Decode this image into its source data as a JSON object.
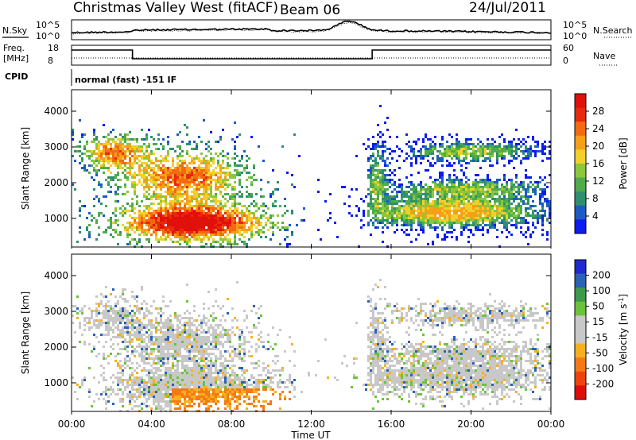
{
  "header": {
    "station": "Christmas Valley West (fitACF)",
    "beam": "Beam 06",
    "date": "24/Jul/2011"
  },
  "panels": {
    "noise": {
      "left_label": "N.Sky",
      "right_label": "N.Search",
      "left_ticks": [
        "10^5",
        "10^0"
      ],
      "right_ticks": [
        "10^5",
        "10^0"
      ]
    },
    "freq": {
      "left_label_1": "Freq.",
      "left_label_2": "[MHz]",
      "right_label": "Nave",
      "left_ticks": [
        "18",
        "8"
      ],
      "right_ticks": [
        "60",
        "0"
      ]
    },
    "cpid": {
      "label": "CPID",
      "text": "normal (fast) -151 IF"
    }
  },
  "chart_data": [
    {
      "type": "heatmap",
      "name": "power",
      "ylabel": "Slant Range [km]",
      "yticks": [
        "1000",
        "2000",
        "3000",
        "4000"
      ],
      "ylim": [
        200,
        4600
      ],
      "colorbar": {
        "label": "Power [dB]",
        "ticks": [
          "4",
          "8",
          "12",
          "16",
          "20",
          "24",
          "28"
        ],
        "colors": [
          "#0a1cf0",
          "#1b5bc4",
          "#2f8f6e",
          "#4fab4c",
          "#8cc73c",
          "#f2d02a",
          "#f5a018",
          "#f36a10",
          "#e82a0c",
          "#e0100a"
        ],
        "range": [
          0,
          32
        ]
      }
    },
    {
      "type": "heatmap",
      "name": "velocity",
      "ylabel": "Slant Range [km]",
      "yticks": [
        "1000",
        "2000",
        "3000",
        "4000"
      ],
      "ylim": [
        200,
        4600
      ],
      "colorbar": {
        "label": "Velocity [m s",
        "label_sup": "-1",
        "label_end": "]",
        "ticks": [
          "200",
          "100",
          "50",
          "15",
          "-15",
          "-50",
          "-100",
          "-200"
        ],
        "colors": [
          "#1f2ad0",
          "#2a62b4",
          "#3d9a4a",
          "#6cc23a",
          "#c8c8c8",
          "#c8c8c8",
          "#f5b020",
          "#f57a14",
          "#f0420c",
          "#e00c0a"
        ]
      }
    }
  ],
  "xaxis": {
    "label": "Time UT",
    "ticks": [
      "00:00",
      "04:00",
      "08:00",
      "12:00",
      "16:00",
      "20:00",
      "00:00"
    ]
  }
}
